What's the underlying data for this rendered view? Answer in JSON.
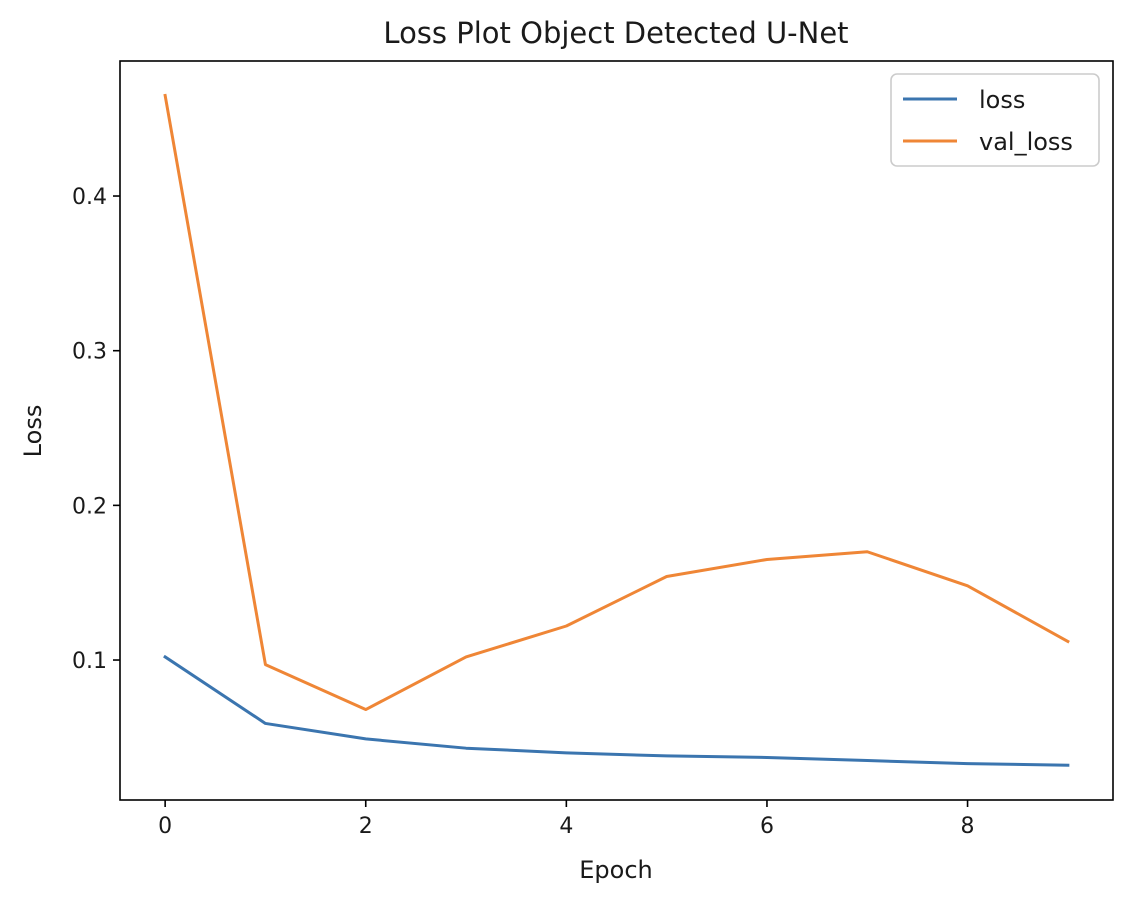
{
  "chart_data": {
    "type": "line",
    "title": "Loss Plot Object Detected U-Net",
    "xlabel": "Epoch",
    "ylabel": "Loss",
    "x": [
      0,
      1,
      2,
      3,
      4,
      5,
      6,
      7,
      8,
      9
    ],
    "series": [
      {
        "name": "loss",
        "color": "#3b75af",
        "values": [
          0.102,
          0.059,
          0.049,
          0.043,
          0.04,
          0.038,
          0.037,
          0.035,
          0.033,
          0.032
        ]
      },
      {
        "name": "val_loss",
        "color": "#ef8636",
        "values": [
          0.465,
          0.097,
          0.068,
          0.102,
          0.122,
          0.154,
          0.165,
          0.17,
          0.148,
          0.112
        ]
      }
    ],
    "xticks": [
      0,
      2,
      4,
      6,
      8
    ],
    "yticks": [
      0.1,
      0.2,
      0.3,
      0.4
    ],
    "xlim": [
      -0.45,
      9.45
    ],
    "ylim": [
      0.0095,
      0.4873
    ],
    "grid": false,
    "legend_position": "top-right"
  }
}
